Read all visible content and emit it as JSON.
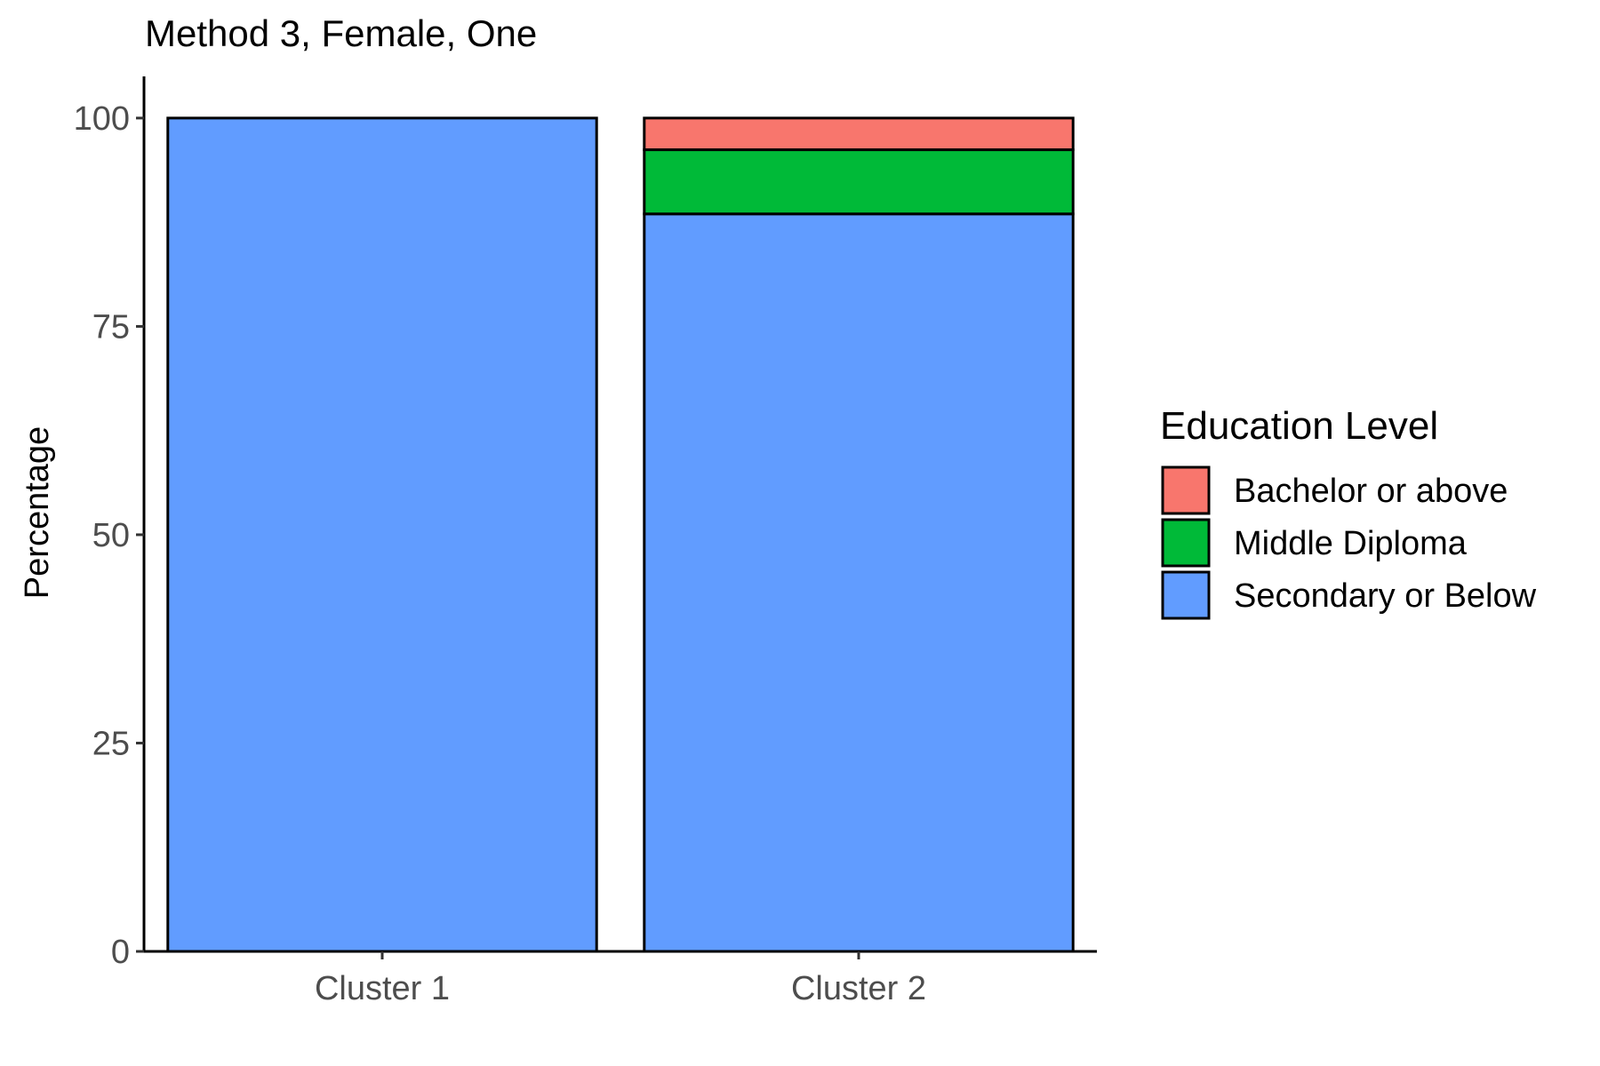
{
  "chart_data": {
    "type": "bar",
    "stacked": true,
    "title": "Method 3, Female, One",
    "xlabel": "",
    "ylabel": "Percentage",
    "ylim": [
      0,
      105
    ],
    "yticks": [
      0,
      25,
      50,
      75,
      100
    ],
    "categories": [
      "Cluster 1",
      "Cluster 2"
    ],
    "series": [
      {
        "name": "Secondary or Below",
        "color": "#619CFF",
        "values": [
          100,
          88.5
        ]
      },
      {
        "name": "Middle Diploma",
        "color": "#00BA38",
        "values": [
          0,
          7.7
        ]
      },
      {
        "name": "Bachelor or above",
        "color": "#F8766D",
        "values": [
          0,
          3.8
        ]
      }
    ],
    "legend": {
      "title": "Education Level",
      "position": "right",
      "order": [
        "Bachelor or above",
        "Middle Diploma",
        "Secondary or Below"
      ]
    },
    "grid": false
  }
}
